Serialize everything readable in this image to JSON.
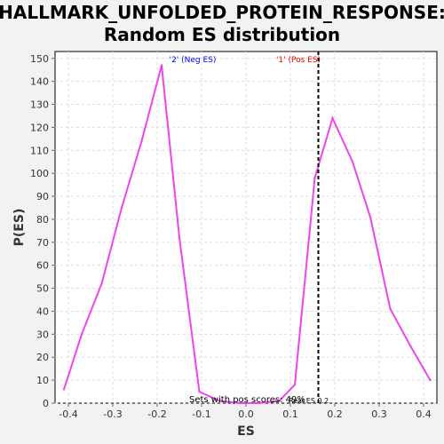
{
  "chart_data": {
    "type": "line",
    "title_line1": "HALLMARK_UNFOLDED_PROTEIN_RESPONSE:",
    "title_line2": "Random ES distribution",
    "xlabel": "ES",
    "ylabel": "P(ES)",
    "xlim": [
      -0.43,
      0.43
    ],
    "ylim": [
      0,
      153
    ],
    "xticks": [
      -0.4,
      -0.3,
      -0.2,
      -0.1,
      0.0,
      0.1,
      0.2,
      0.3,
      0.4
    ],
    "xtick_labels": [
      "-0.4",
      "-0.3",
      "-0.2",
      "-0.1",
      "0.0",
      "0.1",
      "0.2",
      "0.3",
      "0.4"
    ],
    "yticks": [
      0,
      10,
      20,
      30,
      40,
      50,
      60,
      70,
      80,
      90,
      100,
      110,
      120,
      130,
      140,
      150
    ],
    "ytick_labels": [
      "0",
      "10",
      "20",
      "30",
      "40",
      "50",
      "60",
      "70",
      "80",
      "90",
      "100",
      "110",
      "120",
      "130",
      "140",
      "150"
    ],
    "grid": true,
    "series": [
      {
        "color": "#ee44ee",
        "x": [
          -0.41,
          -0.37,
          -0.325,
          -0.28,
          -0.235,
          -0.19,
          -0.15,
          -0.105,
          -0.06,
          -0.015,
          0.03,
          0.075,
          0.11,
          0.155,
          0.195,
          0.24,
          0.28,
          0.325,
          0.37,
          0.415
        ],
        "y": [
          6,
          30,
          52,
          85,
          114,
          147,
          72,
          5,
          1,
          0,
          0,
          1,
          8,
          98,
          124,
          105,
          81,
          41,
          25,
          10
        ]
      }
    ],
    "real_es": 0.163,
    "labels": {
      "neg": "'2' (Neg ES)",
      "pos": "'1' (Pos ES)",
      "sets_pos": "Sets with pos scores: 49%",
      "real_es": "Real ES 0.2"
    },
    "colors": {
      "neg_label": "#0000ee",
      "pos_label": "#ee0000",
      "line": "#ee44ee",
      "plot_bg": "#ffffff",
      "grid": "#dddddd"
    }
  }
}
